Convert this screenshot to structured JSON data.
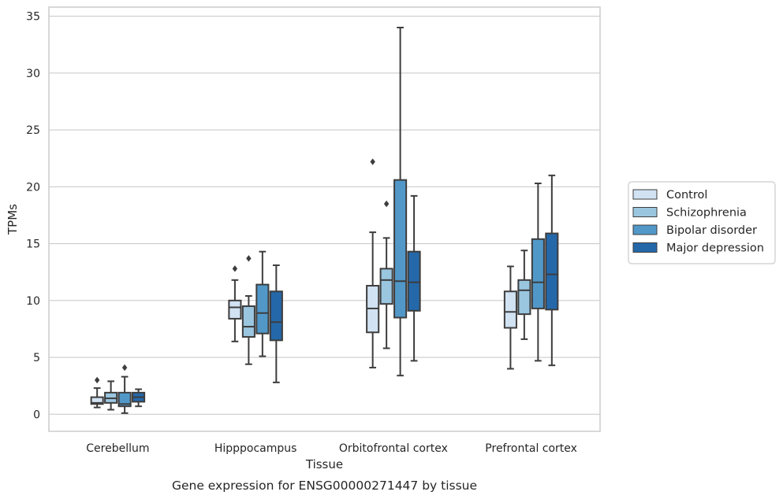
{
  "chart_data": {
    "type": "box",
    "title": "",
    "caption": "Gene expression for ENSG00000271447 by tissue",
    "xlabel": "Tissue",
    "ylabel": "TPMs",
    "ylim": [
      -1.5,
      35.8
    ],
    "yticks": [
      0,
      5,
      10,
      15,
      20,
      25,
      30,
      35
    ],
    "grid": "horizontal",
    "legend_position": "right",
    "categories": [
      "Cerebellum",
      "Hipppocampus",
      "Orbitofrontal cortex",
      "Prefrontal cortex"
    ],
    "series": [
      {
        "name": "Control",
        "color": "#d1e2f2",
        "boxes": [
          {
            "whisker_low": 0.6,
            "q1": 0.9,
            "median": 1.0,
            "q3": 1.5,
            "whisker_high": 2.3,
            "outliers": [
              3.0
            ]
          },
          {
            "whisker_low": 6.4,
            "q1": 8.4,
            "median": 9.4,
            "q3": 10.0,
            "whisker_high": 11.8,
            "outliers": [
              12.8
            ]
          },
          {
            "whisker_low": 4.1,
            "q1": 7.2,
            "median": 9.3,
            "q3": 11.3,
            "whisker_high": 16.0,
            "outliers": [
              22.2
            ]
          },
          {
            "whisker_low": 4.0,
            "q1": 7.6,
            "median": 9.0,
            "q3": 10.8,
            "whisker_high": 13.0,
            "outliers": []
          }
        ]
      },
      {
        "name": "Schizophrenia",
        "color": "#9ac6e0",
        "boxes": [
          {
            "whisker_low": 0.4,
            "q1": 1.0,
            "median": 1.4,
            "q3": 1.9,
            "whisker_high": 2.9,
            "outliers": []
          },
          {
            "whisker_low": 4.4,
            "q1": 6.8,
            "median": 7.7,
            "q3": 9.5,
            "whisker_high": 10.4,
            "outliers": [
              13.7
            ]
          },
          {
            "whisker_low": 5.8,
            "q1": 9.7,
            "median": 11.8,
            "q3": 12.8,
            "whisker_high": 15.5,
            "outliers": [
              18.5
            ]
          },
          {
            "whisker_low": 6.6,
            "q1": 8.8,
            "median": 10.9,
            "q3": 11.8,
            "whisker_high": 14.4,
            "outliers": []
          }
        ]
      },
      {
        "name": "Bipolar disorder",
        "color": "#5198c9",
        "boxes": [
          {
            "whisker_low": 0.1,
            "q1": 0.7,
            "median": 0.9,
            "q3": 1.9,
            "whisker_high": 3.3,
            "outliers": [
              4.1
            ]
          },
          {
            "whisker_low": 5.1,
            "q1": 7.1,
            "median": 8.9,
            "q3": 11.4,
            "whisker_high": 14.3,
            "outliers": []
          },
          {
            "whisker_low": 3.4,
            "q1": 8.5,
            "median": 11.7,
            "q3": 20.6,
            "whisker_high": 34.0,
            "outliers": []
          },
          {
            "whisker_low": 4.7,
            "q1": 9.3,
            "median": 11.6,
            "q3": 15.4,
            "whisker_high": 20.3,
            "outliers": []
          }
        ]
      },
      {
        "name": "Major depression",
        "color": "#2468aa",
        "boxes": [
          {
            "whisker_low": 0.7,
            "q1": 1.1,
            "median": 1.5,
            "q3": 1.9,
            "whisker_high": 2.2,
            "outliers": []
          },
          {
            "whisker_low": 2.8,
            "q1": 6.5,
            "median": 8.1,
            "q3": 10.8,
            "whisker_high": 13.1,
            "outliers": []
          },
          {
            "whisker_low": 4.7,
            "q1": 9.1,
            "median": 11.6,
            "q3": 14.3,
            "whisker_high": 19.2,
            "outliers": []
          },
          {
            "whisker_low": 4.3,
            "q1": 9.2,
            "median": 12.3,
            "q3": 15.9,
            "whisker_high": 21.0,
            "outliers": []
          }
        ]
      }
    ]
  }
}
